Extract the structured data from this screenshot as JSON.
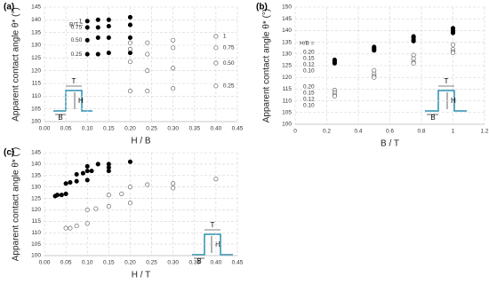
{
  "chart_data": [
    {
      "type": "scatter",
      "panel_label": "(a)",
      "x_label": "H / B",
      "y_label": "Apparent contact angle θ* (°)",
      "legend_title": "B/T =",
      "xlim": [
        0,
        0.45
      ],
      "xticks": [
        {
          "value": 0,
          "label": "0.00"
        },
        {
          "value": 0.05,
          "label": "0.05"
        },
        {
          "value": 0.1,
          "label": "0.10"
        },
        {
          "value": 0.15,
          "label": "0.15"
        },
        {
          "value": 0.2,
          "label": "0.20"
        },
        {
          "value": 0.25,
          "label": "0.25"
        },
        {
          "value": 0.3,
          "label": "0.30"
        },
        {
          "value": 0.35,
          "label": "0.35"
        },
        {
          "value": 0.4,
          "label": "0.40"
        },
        {
          "value": 0.45,
          "label": "0.45"
        }
      ],
      "ylim": [
        100,
        145
      ],
      "yticks": [
        100,
        105,
        110,
        115,
        120,
        125,
        130,
        135,
        140,
        145
      ],
      "grid": true,
      "inset": {
        "T": "T",
        "H": "H",
        "B": "B"
      },
      "series": [
        {
          "name": "1",
          "marker": "filled",
          "color": "#000000",
          "x": [
            0.1,
            0.125,
            0.15,
            0.2
          ],
          "values": [
            139.5,
            140,
            140,
            141
          ]
        },
        {
          "name": "0.75",
          "marker": "filled",
          "color": "#000000",
          "x": [
            0.1,
            0.125,
            0.15,
            0.2
          ],
          "values": [
            137,
            137,
            137.5,
            138
          ]
        },
        {
          "name": "0.50",
          "marker": "filled",
          "color": "#000000",
          "x": [
            0.1,
            0.125,
            0.15,
            0.2
          ],
          "values": [
            132,
            133,
            133,
            133
          ]
        },
        {
          "name": "0.25",
          "marker": "filled",
          "color": "#000000",
          "x": [
            0.1,
            0.125,
            0.15,
            0.2
          ],
          "values": [
            126.5,
            126.5,
            127,
            127
          ]
        },
        {
          "name": "1",
          "marker": "open",
          "color": "#666666",
          "x": [
            0.2,
            0.24,
            0.3,
            0.4
          ],
          "values": [
            131,
            131,
            132,
            133.5
          ]
        },
        {
          "name": "0.75",
          "marker": "open",
          "color": "#666666",
          "x": [
            0.2,
            0.24,
            0.3,
            0.4
          ],
          "values": [
            128.5,
            126.5,
            129,
            129
          ]
        },
        {
          "name": "0.50",
          "marker": "open",
          "color": "#666666",
          "x": [
            0.2,
            0.24,
            0.3,
            0.4
          ],
          "values": [
            123.5,
            120,
            121,
            123
          ]
        },
        {
          "name": "0.25",
          "marker": "open",
          "color": "#666666",
          "x": [
            0.2,
            0.24,
            0.3,
            0.4
          ],
          "values": [
            112,
            112,
            113,
            114
          ]
        }
      ]
    },
    {
      "type": "scatter",
      "panel_label": "(b)",
      "x_label": "B / T",
      "y_label": "Apparent contact angle θ* (°)",
      "legend_title": "H/B =",
      "xlim": [
        0,
        1.2
      ],
      "xticks": [
        0,
        0.2,
        0.4,
        0.6,
        0.8,
        1,
        1.2
      ],
      "ylim": [
        100,
        150
      ],
      "yticks": [
        100,
        105,
        110,
        115,
        120,
        125,
        130,
        135,
        140,
        145,
        150
      ],
      "grid": true,
      "inset": {
        "T": "T",
        "H": "H",
        "B": "B"
      },
      "series": [
        {
          "name": "0.20",
          "marker": "filled",
          "color": "#000000",
          "x": [
            0.25,
            0.5,
            0.75,
            1
          ],
          "values": [
            127.5,
            133,
            137.5,
            141
          ]
        },
        {
          "name": "0.15",
          "marker": "filled",
          "color": "#000000",
          "x": [
            0.25,
            0.5,
            0.75,
            1
          ],
          "values": [
            127,
            132.5,
            137,
            140
          ]
        },
        {
          "name": "0.12",
          "marker": "filled",
          "color": "#000000",
          "x": [
            0.25,
            0.5,
            0.75,
            1
          ],
          "values": [
            126.5,
            132,
            136,
            139.5
          ]
        },
        {
          "name": "0.10",
          "marker": "filled",
          "color": "#000000",
          "x": [
            0.25,
            0.5,
            0.75,
            1
          ],
          "values": [
            126,
            131.5,
            135.5,
            139
          ]
        },
        {
          "name": "0.20",
          "marker": "open",
          "color": "#666666",
          "x": [
            0.25,
            0.5,
            0.75,
            1
          ],
          "values": [
            114.5,
            123,
            129.5,
            134
          ]
        },
        {
          "name": "0.15",
          "marker": "open",
          "color": "#666666",
          "x": [
            0.25,
            0.5,
            0.75,
            1
          ],
          "values": [
            113.5,
            121.5,
            128,
            132
          ]
        },
        {
          "name": "0.12",
          "marker": "open",
          "color": "#666666",
          "x": [
            0.25,
            0.5,
            0.75,
            1
          ],
          "values": [
            112.5,
            120.5,
            126.5,
            131
          ]
        },
        {
          "name": "0.10",
          "marker": "open",
          "color": "#666666",
          "x": [
            0.25,
            0.5,
            0.75,
            1
          ],
          "values": [
            112,
            120,
            126,
            130.5
          ]
        }
      ]
    },
    {
      "type": "scatter",
      "panel_label": "(c)",
      "x_label": "H / T",
      "y_label": "Apparent contact angle θ* (°)",
      "xlim": [
        0,
        0.45
      ],
      "xticks": [
        {
          "value": 0,
          "label": "0.00"
        },
        {
          "value": 0.05,
          "label": "0.05"
        },
        {
          "value": 0.1,
          "label": "0.10"
        },
        {
          "value": 0.15,
          "label": "0.15"
        },
        {
          "value": 0.2,
          "label": "0.20"
        },
        {
          "value": 0.25,
          "label": "0.25"
        },
        {
          "value": 0.3,
          "label": "0.30"
        },
        {
          "value": 0.35,
          "label": "0.35"
        },
        {
          "value": 0.4,
          "label": "0.40"
        },
        {
          "value": 0.45,
          "label": "0.45"
        }
      ],
      "ylim": [
        100,
        145
      ],
      "yticks": [
        100,
        105,
        110,
        115,
        120,
        125,
        130,
        135,
        140,
        145
      ],
      "grid": true,
      "inset": {
        "T": "T",
        "H": "H",
        "B": "B"
      },
      "series": [
        {
          "marker": "filled",
          "color": "#000000",
          "x": [
            0.025,
            0.03,
            0.04,
            0.05,
            0.05,
            0.06,
            0.075,
            0.075,
            0.09,
            0.1,
            0.1,
            0.1,
            0.11,
            0.125,
            0.15,
            0.15,
            0.15,
            0.2
          ],
          "values": [
            126,
            126.5,
            126.5,
            127,
            131.5,
            132,
            132.5,
            135.5,
            136,
            133,
            137,
            139,
            137,
            140,
            137,
            138.5,
            140,
            141
          ]
        },
        {
          "marker": "open",
          "color": "#666666",
          "x": [
            0.05,
            0.06,
            0.075,
            0.1,
            0.1,
            0.12,
            0.15,
            0.15,
            0.18,
            0.2,
            0.2,
            0.24,
            0.3,
            0.3,
            0.4
          ],
          "values": [
            112,
            112,
            113,
            114,
            120,
            120.5,
            121.5,
            126.5,
            127,
            123,
            130,
            131,
            131.5,
            129.5,
            133.5
          ]
        }
      ]
    }
  ]
}
